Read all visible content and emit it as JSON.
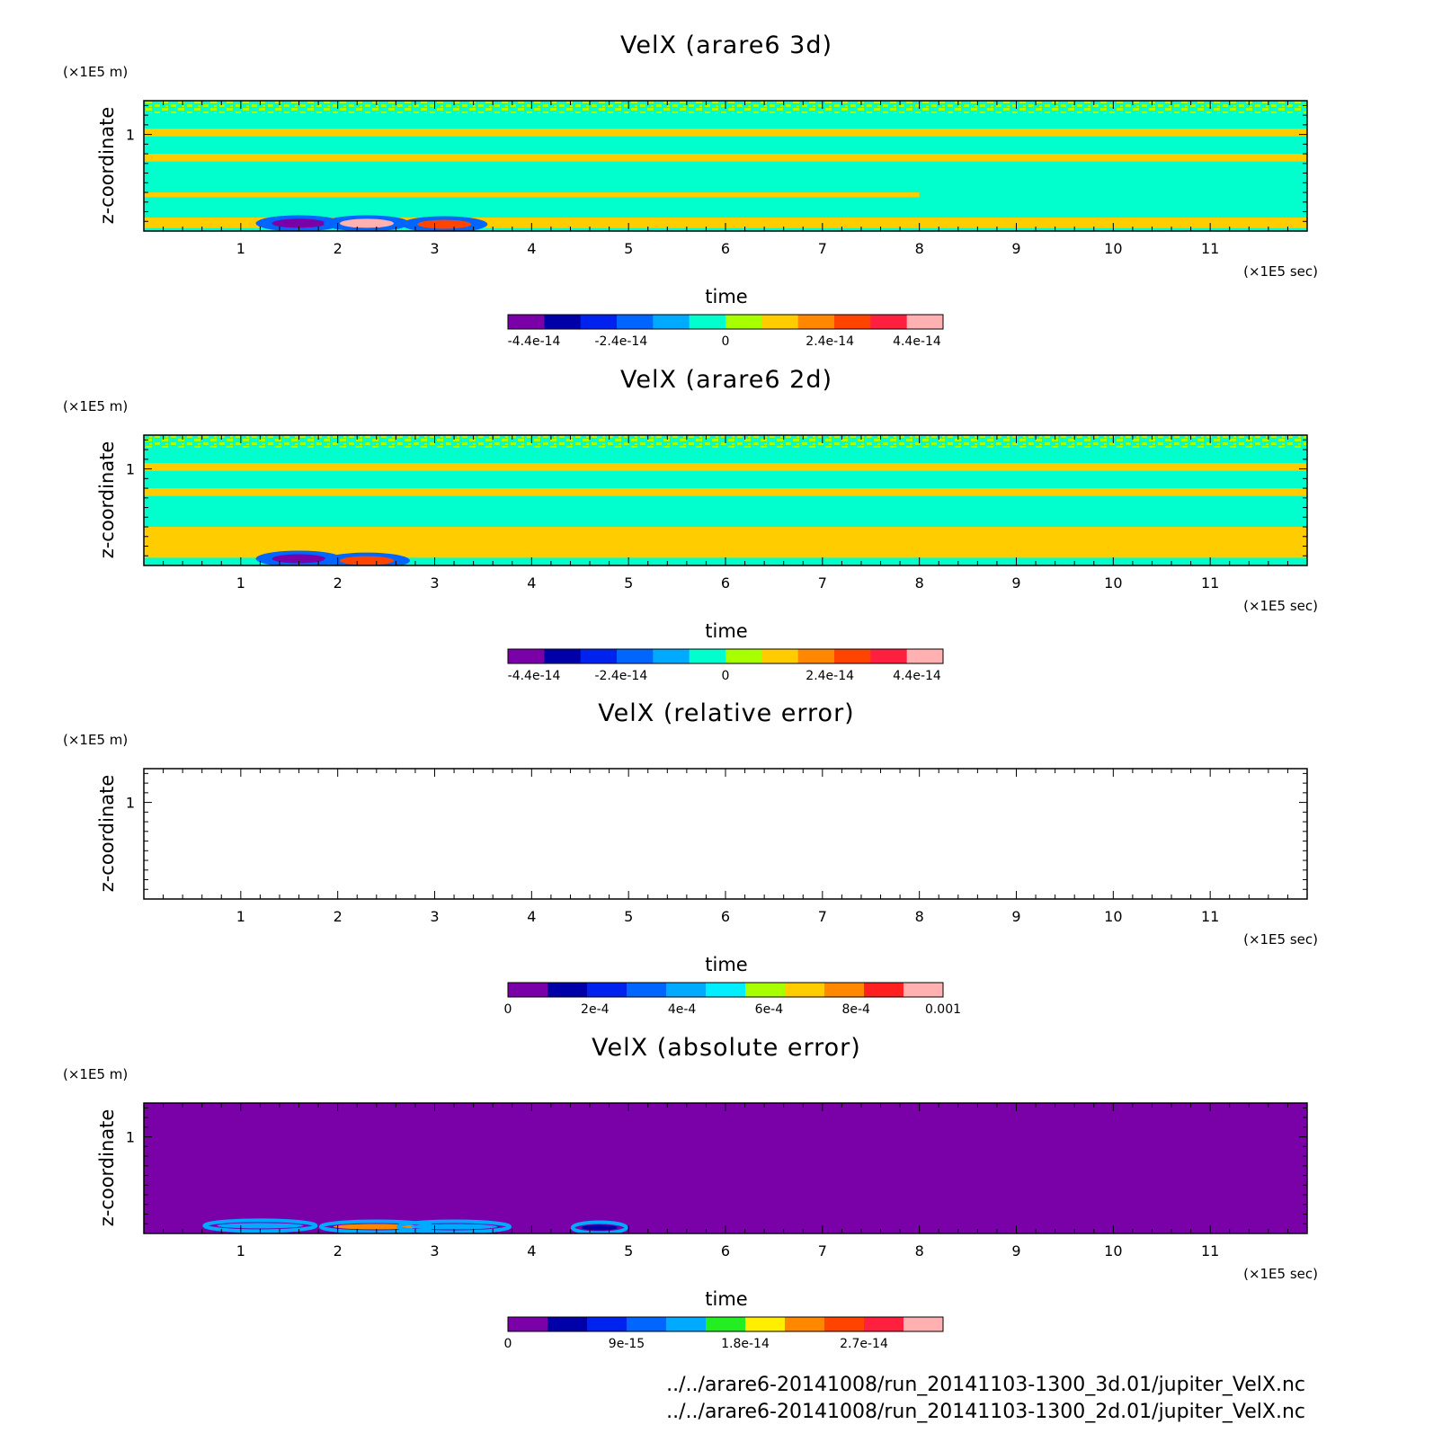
{
  "chart_data": [
    {
      "type": "heatmap",
      "title": "VelX (arare6 3d)",
      "xlabel": "time",
      "ylabel": "z-coordinate",
      "x_unit": "(×1E5 sec)",
      "y_unit": "(×1E5 m)",
      "xlim": [
        0,
        12
      ],
      "ylim": [
        0,
        1.35
      ],
      "x_ticks": [
        "1",
        "2",
        "3",
        "4",
        "5",
        "6",
        "7",
        "8",
        "9",
        "10",
        "11"
      ],
      "y_ticks": [
        "1"
      ],
      "colorbar": {
        "colors": [
          "#7a00a8",
          "#0000a8",
          "#0022ee",
          "#0066ff",
          "#00aaff",
          "#00ffcc",
          "#a8ff00",
          "#ffcc00",
          "#ff8800",
          "#ff4400",
          "#ff2040",
          "#ffb0b0"
        ],
        "tick_labels": [
          "-4.4e-14",
          "-2.4e-14",
          "0",
          "2.4e-14",
          "4.4e-14"
        ],
        "tick_values": [
          -4.4e-14,
          -2.4e-14,
          0,
          2.4e-14,
          4.4e-14
        ],
        "range": [
          -5e-14,
          5e-14
        ]
      },
      "bands": [
        {
          "t0": 0,
          "t1": 12,
          "z0": 1.22,
          "z1": 1.35,
          "value": "noise"
        },
        {
          "t0": 0,
          "t1": 12,
          "z0": 0.98,
          "z1": 1.06,
          "value": 1.2e-14
        },
        {
          "t0": 0,
          "t1": 12,
          "z0": 0.72,
          "z1": 0.8,
          "value": 1.2e-14
        },
        {
          "t0": 0,
          "t1": 8,
          "z0": 0.35,
          "z1": 0.4,
          "value": 1.2e-14
        },
        {
          "t0": 0,
          "t1": 12,
          "z0": 0.03,
          "z1": 0.14,
          "value": 1.2e-14
        }
      ],
      "features": [
        {
          "t": 1.6,
          "z": 0.08,
          "value": -4.4e-14
        },
        {
          "t": 2.3,
          "z": 0.08,
          "value": 4.4e-14
        },
        {
          "t": 3.1,
          "z": 0.07,
          "value": 3e-14
        }
      ]
    },
    {
      "type": "heatmap",
      "title": "VelX (arare6 2d)",
      "xlabel": "time",
      "ylabel": "z-coordinate",
      "x_unit": "(×1E5 sec)",
      "y_unit": "(×1E5 m)",
      "xlim": [
        0,
        12
      ],
      "ylim": [
        0,
        1.35
      ],
      "x_ticks": [
        "1",
        "2",
        "3",
        "4",
        "5",
        "6",
        "7",
        "8",
        "9",
        "10",
        "11"
      ],
      "y_ticks": [
        "1"
      ],
      "colorbar": {
        "colors": [
          "#7a00a8",
          "#0000a8",
          "#0022ee",
          "#0066ff",
          "#00aaff",
          "#00ffcc",
          "#a8ff00",
          "#ffcc00",
          "#ff8800",
          "#ff4400",
          "#ff2040",
          "#ffb0b0"
        ],
        "tick_labels": [
          "-4.4e-14",
          "-2.4e-14",
          "0",
          "2.4e-14",
          "4.4e-14"
        ],
        "tick_values": [
          -4.4e-14,
          -2.4e-14,
          0,
          2.4e-14,
          4.4e-14
        ],
        "range": [
          -5e-14,
          5e-14
        ]
      },
      "bands": [
        {
          "t0": 0,
          "t1": 12,
          "z0": 1.22,
          "z1": 1.35,
          "value": "noise"
        },
        {
          "t0": 0,
          "t1": 12,
          "z0": 0.98,
          "z1": 1.06,
          "value": 1.2e-14
        },
        {
          "t0": 0,
          "t1": 12,
          "z0": 0.72,
          "z1": 0.8,
          "value": 1.2e-14
        },
        {
          "t0": 0,
          "t1": 12,
          "z0": 0.08,
          "z1": 0.4,
          "value": 1.2e-14
        }
      ],
      "features": [
        {
          "t": 1.6,
          "z": 0.07,
          "value": -4.4e-14
        },
        {
          "t": 2.3,
          "z": 0.05,
          "value": 3e-14
        }
      ]
    },
    {
      "type": "heatmap",
      "title": "VelX (relative error)",
      "xlabel": "time",
      "ylabel": "z-coordinate",
      "x_unit": "(×1E5 sec)",
      "y_unit": "(×1E5 m)",
      "xlim": [
        0,
        12
      ],
      "ylim": [
        0,
        1.35
      ],
      "x_ticks": [
        "1",
        "2",
        "3",
        "4",
        "5",
        "6",
        "7",
        "8",
        "9",
        "10",
        "11"
      ],
      "y_ticks": [
        "1"
      ],
      "colorbar": {
        "colors": [
          "#7a00a8",
          "#0000a8",
          "#0022ee",
          "#0066ff",
          "#00aaff",
          "#00eeff",
          "#a8ff00",
          "#ffcc00",
          "#ff8800",
          "#ff2020",
          "#ffb0b0"
        ],
        "tick_labels": [
          "0",
          "2e-4",
          "4e-4",
          "6e-4",
          "8e-4",
          "0.001"
        ],
        "tick_values": [
          0,
          0.0002,
          0.0004,
          0.0006,
          0.0008,
          0.001
        ],
        "range": [
          0,
          0.001
        ]
      },
      "bands": [],
      "features": []
    },
    {
      "type": "heatmap",
      "title": "VelX (absolute error)",
      "xlabel": "time",
      "ylabel": "z-coordinate",
      "x_unit": "(×1E5 sec)",
      "y_unit": "(×1E5 m)",
      "xlim": [
        0,
        12
      ],
      "ylim": [
        0,
        1.35
      ],
      "x_ticks": [
        "1",
        "2",
        "3",
        "4",
        "5",
        "6",
        "7",
        "8",
        "9",
        "10",
        "11"
      ],
      "y_ticks": [
        "1"
      ],
      "colorbar": {
        "colors": [
          "#7a00a8",
          "#0000a8",
          "#0022ee",
          "#0066ff",
          "#00aaff",
          "#22ee22",
          "#ffee00",
          "#ff8800",
          "#ff4400",
          "#ff2040",
          "#ffb0b0"
        ],
        "tick_labels": [
          "0",
          "9e-15",
          "1.8e-14",
          "2.7e-14"
        ],
        "tick_values": [
          0,
          9e-15,
          1.8e-14,
          2.7e-14
        ],
        "range": [
          0,
          3.3e-14
        ]
      },
      "bands": [],
      "features": [
        {
          "t": 1.2,
          "z": 0.08,
          "value": 1.2e-14
        },
        {
          "t": 2.4,
          "z": 0.07,
          "value": 2.2e-14
        },
        {
          "t": 3.2,
          "z": 0.07,
          "value": 1.4e-14
        },
        {
          "t": 4.7,
          "z": 0.06,
          "value": 4e-15
        }
      ]
    }
  ],
  "file_paths": [
    "../../arare6-20141008/run_20141103-1300_3d.01/jupiter_VelX.nc",
    "../../arare6-20141008/run_20141103-1300_2d.01/jupiter_VelX.nc"
  ]
}
